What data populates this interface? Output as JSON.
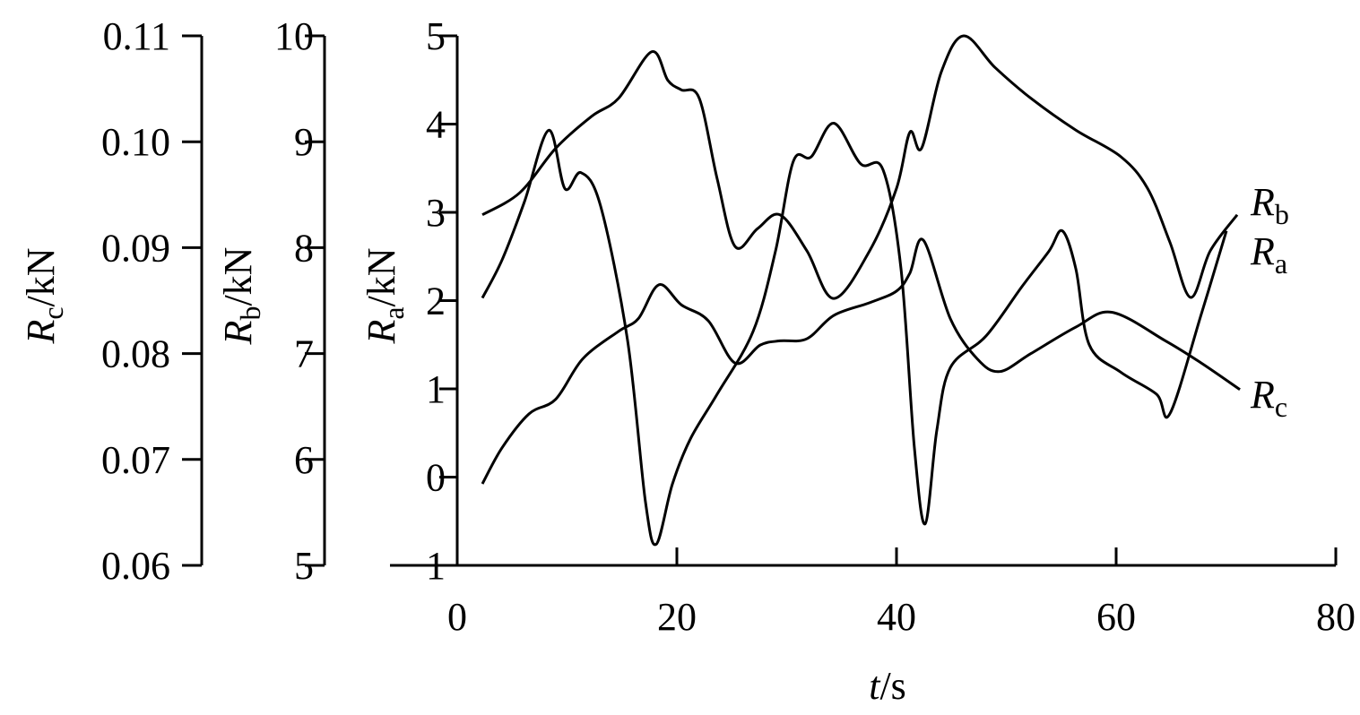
{
  "chart_data": {
    "type": "line",
    "xlabel": {
      "symbol": "t",
      "unit": "/s"
    },
    "ylabel": {
      "symbol": "R",
      "subscript": "a",
      "unit": "/kN"
    },
    "y2label": {
      "symbol": "R",
      "subscript": "b",
      "unit": "/kN"
    },
    "y3label": {
      "symbol": "R",
      "subscript": "c",
      "unit": "/kN"
    },
    "xlim": [
      0,
      80
    ],
    "xticks": [
      0,
      20,
      40,
      60,
      80
    ],
    "ylim": [
      -1,
      5
    ],
    "yticks": [
      {
        "value": -1,
        "label": "−1"
      },
      0,
      1,
      2,
      3,
      4,
      5
    ],
    "y2lim": [
      5,
      10
    ],
    "y2ticks": [
      5,
      6,
      7,
      8,
      9,
      10
    ],
    "y3lim": [
      0.06,
      0.11
    ],
    "y3ticks": [
      0.06,
      0.07,
      0.08,
      0.09,
      {
        "value": 0.1,
        "label": "0.10"
      },
      0.11
    ],
    "series": [
      {
        "name": "Rb",
        "axis": "y2",
        "color": "#000000",
        "x": [
          2.29,
          5.71,
          8.98,
          12.24,
          14.69,
          17.71,
          19.18,
          20.41,
          22.04,
          23.67,
          25.31,
          27.35,
          29.39,
          31.84,
          34.29,
          37.55,
          40.0,
          41.22,
          42.29,
          44.08,
          46.12,
          48.98,
          52.24,
          56.33,
          60.41,
          62.86,
          64.9,
          66.78,
          68.57,
          71.02
        ],
        "values": [
          8.31,
          8.52,
          8.94,
          9.24,
          9.41,
          9.85,
          9.58,
          9.49,
          9.41,
          8.65,
          8.01,
          8.18,
          8.31,
          7.97,
          7.52,
          7.97,
          8.56,
          9.09,
          8.94,
          9.66,
          10.0,
          9.7,
          9.41,
          9.11,
          8.86,
          8.56,
          8.05,
          7.53,
          7.97,
          8.31
        ]
      },
      {
        "name": "Ra",
        "axis": "y",
        "color": "#000000",
        "x": [
          2.29,
          4.08,
          6.12,
          8.33,
          9.8,
          11.27,
          13.06,
          15.51,
          17.14,
          18.12,
          19.59,
          21.22,
          23.67,
          26.94,
          28.98,
          30.61,
          32.24,
          34.29,
          36.73,
          38.78,
          40.41,
          41.63,
          42.61,
          43.67,
          44.9,
          48.16,
          51.43,
          53.88,
          55.1,
          56.33,
          57.55,
          60.41,
          63.67,
          64.9,
          67.76,
          70.04
        ],
        "values": [
          2.03,
          2.46,
          3.12,
          3.93,
          3.27,
          3.45,
          3.07,
          1.55,
          -0.28,
          -0.76,
          -0.08,
          0.43,
          0.94,
          1.65,
          2.56,
          3.58,
          3.63,
          4.01,
          3.55,
          3.48,
          2.36,
          0.33,
          -0.53,
          0.53,
          1.24,
          1.6,
          2.16,
          2.56,
          2.79,
          2.36,
          1.5,
          1.19,
          0.94,
          0.72,
          1.85,
          2.79
        ]
      },
      {
        "name": "Rc",
        "axis": "y3",
        "color": "#000000",
        "x": [
          2.29,
          4.08,
          6.53,
          8.98,
          11.43,
          14.69,
          16.49,
          18.37,
          20.41,
          22.86,
          25.31,
          27.59,
          29.39,
          31.84,
          34.29,
          37.55,
          40.0,
          41.22,
          42.45,
          44.9,
          47.35,
          49.39,
          52.24,
          56.33,
          59.59,
          64.49,
          67.76,
          71.27
        ],
        "values": [
          0.0677,
          0.0711,
          0.0743,
          0.0757,
          0.0795,
          0.0821,
          0.0833,
          0.0865,
          0.0846,
          0.0831,
          0.0791,
          0.0808,
          0.0812,
          0.0814,
          0.0836,
          0.0848,
          0.0859,
          0.0876,
          0.0907,
          0.0833,
          0.0795,
          0.0783,
          0.08,
          0.0825,
          0.0839,
          0.0812,
          0.0791,
          0.0766
        ]
      }
    ]
  }
}
